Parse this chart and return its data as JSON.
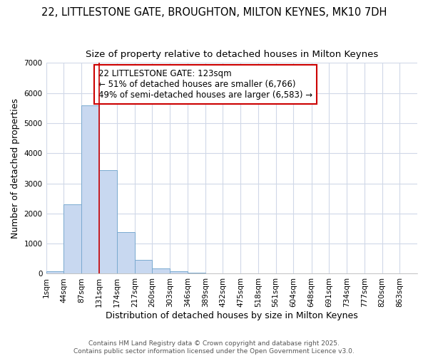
{
  "title_line1": "22, LITTLESTONE GATE, BROUGHTON, MILTON KEYNES, MK10 7DH",
  "title_line2": "Size of property relative to detached houses in Milton Keynes",
  "xlabel": "Distribution of detached houses by size in Milton Keynes",
  "ylabel": "Number of detached properties",
  "bar_color": "#c8d8f0",
  "bar_edge_color": "#7aaad0",
  "vline_color": "#cc0000",
  "vline_x": 131,
  "annotation_text": "22 LITTLESTONE GATE: 123sqm\n← 51% of detached houses are smaller (6,766)\n49% of semi-detached houses are larger (6,583) →",
  "annotation_box_color": "#ffffff",
  "annotation_border_color": "#cc0000",
  "categories": [
    "1sqm",
    "44sqm",
    "87sqm",
    "131sqm",
    "174sqm",
    "217sqm",
    "260sqm",
    "303sqm",
    "346sqm",
    "389sqm",
    "432sqm",
    "475sqm",
    "518sqm",
    "561sqm",
    "604sqm",
    "648sqm",
    "691sqm",
    "734sqm",
    "777sqm",
    "820sqm",
    "863sqm"
  ],
  "bin_edges": [
    1,
    44,
    87,
    131,
    174,
    217,
    260,
    303,
    346,
    389,
    432,
    475,
    518,
    561,
    604,
    648,
    691,
    734,
    777,
    820,
    863,
    906
  ],
  "bar_heights": [
    70,
    2300,
    5600,
    3450,
    1380,
    460,
    185,
    75,
    30,
    5,
    2,
    1,
    0,
    0,
    0,
    0,
    0,
    0,
    0,
    0,
    0
  ],
  "ylim": [
    0,
    7000
  ],
  "yticks": [
    0,
    1000,
    2000,
    3000,
    4000,
    5000,
    6000,
    7000
  ],
  "background_color": "#ffffff",
  "grid_color": "#d0d8e8",
  "footer_text": "Contains HM Land Registry data © Crown copyright and database right 2025.\nContains public sector information licensed under the Open Government Licence v3.0.",
  "title_fontsize": 10.5,
  "subtitle_fontsize": 9.5,
  "axis_label_fontsize": 9,
  "tick_fontsize": 7.5,
  "annotation_fontsize": 8.5
}
